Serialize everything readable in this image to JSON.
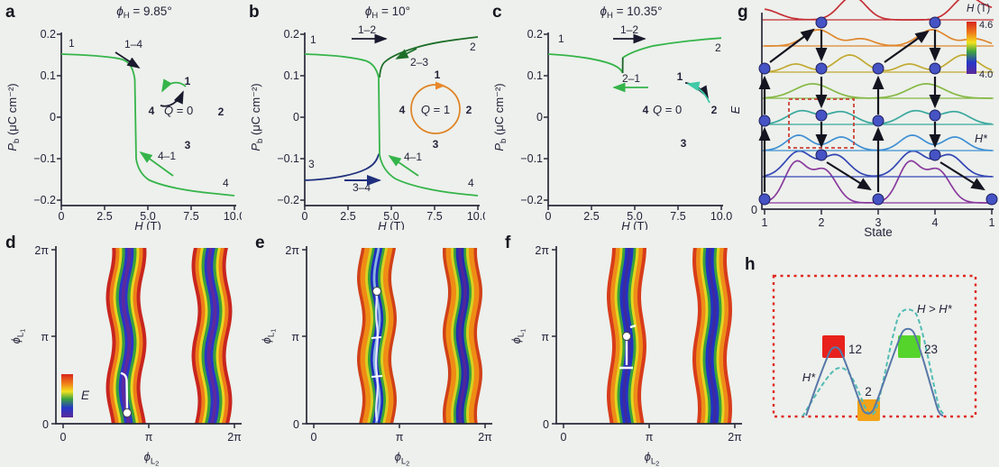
{
  "panels": {
    "a": {
      "letter": "a",
      "title_phi": "ϕ",
      "title_sub": "H",
      "title_rest": " = 9.85°",
      "ylabel_main": "P",
      "ylabel_sub": "b",
      "ylabel_units": " (μC cm⁻²)",
      "xlabel_main": "H",
      "xlabel_units": " (T)",
      "yticks": [
        "0.2",
        "0.1",
        "0",
        "−0.1",
        "−0.2"
      ],
      "xticks": [
        "0",
        "2.5",
        "5.0",
        "7.5",
        "10.0"
      ],
      "pt1": "1",
      "pt4": "4",
      "t14": "1–4",
      "t41": "4–1",
      "cyc_q": "Q",
      "cyc_q_rest": " = 0",
      "cyc_1": "1",
      "cyc_2": "2",
      "cyc_3": "3",
      "cyc_4": "4"
    },
    "b": {
      "letter": "b",
      "title_phi": "ϕ",
      "title_sub": "H",
      "title_rest": " = 10°",
      "ylabel_main": "P",
      "ylabel_sub": "b",
      "ylabel_units": " (μC cm⁻²)",
      "xlabel_main": "H",
      "xlabel_units": " (T)",
      "yticks": [
        "0.2",
        "0.1",
        "0",
        "−0.1",
        "−0.2"
      ],
      "xticks": [
        "0",
        "2.5",
        "5.0",
        "7.5",
        "10.0"
      ],
      "pt1": "1",
      "pt2": "2",
      "pt3": "3",
      "pt4": "4",
      "t12": "1–2",
      "t23": "2–3",
      "t41": "4–1",
      "t34": "3–4",
      "cyc_q": "Q",
      "cyc_q_rest": " = 1",
      "cyc_1": "1",
      "cyc_2": "2",
      "cyc_3": "3",
      "cyc_4": "4"
    },
    "c": {
      "letter": "c",
      "title_phi": "ϕ",
      "title_sub": "H",
      "title_rest": " = 10.35°",
      "ylabel_main": "P",
      "ylabel_sub": "b",
      "ylabel_units": " (μC cm⁻²)",
      "xlabel_main": "H",
      "xlabel_units": " (T)",
      "yticks": [
        "0.2",
        "0.1",
        "0",
        "−0.1",
        "−0.2"
      ],
      "xticks": [
        "0",
        "2.5",
        "5.0",
        "7.5",
        "10.0"
      ],
      "pt1": "1",
      "pt2": "2",
      "t12": "1–2",
      "t21": "2–1",
      "cyc_q": "Q",
      "cyc_q_rest": " = 0",
      "cyc_1": "1",
      "cyc_2": "2",
      "cyc_3": "3",
      "cyc_4": "4"
    },
    "d": {
      "letter": "d",
      "ylabel_phi": "ϕ",
      "ylabel_sub": "L",
      "ylabel_subsub": "1",
      "xlabel_phi": "ϕ",
      "xlabel_sub": "L",
      "xlabel_subsub": "2",
      "yticks": [
        "2π",
        "π",
        "0"
      ],
      "xticks": [
        "0",
        "π",
        "2π"
      ],
      "cbar_label": "E"
    },
    "e": {
      "letter": "e",
      "ylabel_phi": "ϕ",
      "ylabel_sub": "L",
      "ylabel_subsub": "1",
      "xlabel_phi": "ϕ",
      "xlabel_sub": "L",
      "xlabel_subsub": "2",
      "yticks": [
        "2π",
        "π",
        "0"
      ],
      "xticks": [
        "0",
        "π",
        "2π"
      ]
    },
    "f": {
      "letter": "f",
      "ylabel_phi": "ϕ",
      "ylabel_sub": "L",
      "ylabel_subsub": "1",
      "xlabel_phi": "ϕ",
      "xlabel_sub": "L",
      "xlabel_subsub": "2",
      "yticks": [
        "2π",
        "π",
        "0"
      ],
      "xticks": [
        "0",
        "π",
        "2π"
      ]
    },
    "g": {
      "letter": "g",
      "ylabel": "E",
      "ytick0": "0",
      "xticks": [
        "1",
        "2",
        "3",
        "4",
        "1"
      ],
      "xlabel": "State",
      "cbar_h": "H",
      "cbar_units": " (T)",
      "cbar_max": "4.6",
      "cbar_min": "4.0",
      "hstar": "H*"
    },
    "h": {
      "letter": "h",
      "hstar": "H*",
      "cond": "H > H*",
      "lab12": "12",
      "lab2": "2",
      "lab23": "23"
    }
  },
  "colors": {
    "green_curve": "#35b44a",
    "dark_green": "#1d6e28",
    "navy": "#20307e",
    "orange_circle": "#e08222",
    "teal_arrow": "#3ec9a7",
    "dot_blue": "#4553c4",
    "box_red": "#cc4038",
    "h_red": "#e8211c",
    "h_orange": "#f2a318",
    "h_green": "#55d42c",
    "h_solid": "#5878a8",
    "h_dashed": "#52bcb4"
  },
  "chart_data": [
    {
      "id": "a",
      "type": "line",
      "title": "ϕH = 9.85°",
      "xlabel": "H (T)",
      "ylabel": "Pb (μC cm⁻²)",
      "xlim": [
        0,
        10
      ],
      "ylim": [
        -0.2,
        0.2
      ],
      "xticks": [
        0,
        2.5,
        5.0,
        7.5,
        10.0
      ],
      "yticks": [
        -0.2,
        -0.1,
        0,
        0.1,
        0.2
      ],
      "series": [
        {
          "name": "1→4 / 4→1 hysteresis loop (green)",
          "x": [
            0,
            1,
            2,
            3,
            3.7,
            4.1,
            4.3,
            4.35,
            4.35,
            4.5,
            5,
            6,
            8,
            10
          ],
          "y": [
            0.152,
            0.151,
            0.149,
            0.145,
            0.137,
            0.118,
            0.09,
            0.08,
            -0.1,
            -0.128,
            -0.152,
            -0.166,
            -0.179,
            -0.19
          ]
        }
      ],
      "annotations": [
        "1 at (0,0.15)",
        "4 at (10,-0.19)",
        "1–4 transition at H≈4.3 T",
        "4–1 reverse transition",
        "cycle diagram: states 1,2,3,4 with Q = 0"
      ]
    },
    {
      "id": "b",
      "type": "line",
      "title": "ϕH = 10°",
      "xlabel": "H (T)",
      "ylabel": "Pb (μC cm⁻²)",
      "xlim": [
        0,
        10
      ],
      "ylim": [
        -0.2,
        0.2
      ],
      "xticks": [
        0,
        2.5,
        5.0,
        7.5,
        10.0
      ],
      "yticks": [
        -0.2,
        -0.1,
        0,
        0.1,
        0.2
      ],
      "series": [
        {
          "name": "1→4 branch (light green)",
          "x": [
            0,
            1,
            2,
            3,
            3.7,
            4.1,
            4.3,
            4.35,
            4.35,
            4.6,
            5,
            6,
            8,
            10
          ],
          "y": [
            0.152,
            0.151,
            0.149,
            0.145,
            0.138,
            0.12,
            0.1,
            0.095,
            -0.095,
            -0.13,
            -0.152,
            -0.168,
            -0.18,
            -0.19
          ]
        },
        {
          "name": "state-2 branch (dark green)",
          "x": [
            10,
            8,
            6,
            5,
            4.6,
            4.45,
            4.35
          ],
          "y": [
            0.198,
            0.19,
            0.18,
            0.168,
            0.152,
            0.13,
            0.1
          ]
        },
        {
          "name": "state-3 branch (navy)",
          "x": [
            0,
            1,
            2,
            3,
            3.7,
            4.1,
            4.3
          ],
          "y": [
            -0.152,
            -0.151,
            -0.148,
            -0.141,
            -0.13,
            -0.108,
            -0.09
          ]
        }
      ],
      "annotations": [
        "1–2",
        "2–3",
        "4–1",
        "3–4",
        "winding cycle 1→2→3→4 with Q = 1 (orange circle)"
      ]
    },
    {
      "id": "c",
      "type": "line",
      "title": "ϕH = 10.35°",
      "xlabel": "H (T)",
      "ylabel": "Pb (μC cm⁻²)",
      "xlim": [
        0,
        10
      ],
      "ylim": [
        -0.2,
        0.2
      ],
      "xticks": [
        0,
        2.5,
        5.0,
        7.5,
        10.0
      ],
      "yticks": [
        -0.2,
        -0.1,
        0,
        0.1,
        0.2
      ],
      "series": [
        {
          "name": "1↔2 reversible curve (green)",
          "x": [
            0,
            1,
            2,
            3,
            3.7,
            4.2,
            4.3,
            4.3,
            4.6,
            5,
            6,
            8,
            10
          ],
          "y": [
            0.152,
            0.15,
            0.146,
            0.138,
            0.128,
            0.108,
            0.1,
            0.135,
            0.142,
            0.15,
            0.163,
            0.18,
            0.19
          ]
        }
      ],
      "annotations": [
        "1 at (0,0.15)",
        "2 at (10,0.19)",
        "1–2 forward",
        "2–1 reverse",
        "cycle diagram: 1,2 (3,4 unused), Q = 0"
      ]
    },
    {
      "id": "d",
      "type": "heatmap",
      "xlabel": "ϕL2",
      "ylabel": "ϕL1",
      "xlim": [
        "0",
        "2π"
      ],
      "ylim": [
        "0",
        "2π"
      ],
      "colorbar": "E (rainbow, red=high → purple=low)",
      "description": "Energy landscape with two vertical low-energy valleys centered near ϕL2 ≈ 0.75π and 1.75π; white relaxation path ends at dot near (0.75π, 0.1·2π)."
    },
    {
      "id": "e",
      "type": "heatmap",
      "xlabel": "ϕL2",
      "ylabel": "ϕL1",
      "xlim": [
        "0",
        "2π"
      ],
      "ylim": [
        "0",
        "2π"
      ],
      "description": "Same two valleys, narrower/deeper; white winding trajectory runs the full height of the left valley ending at dot near (0.75π, 1.5π)."
    },
    {
      "id": "f",
      "type": "heatmap",
      "xlabel": "ϕL2",
      "ylabel": "ϕL1",
      "xlim": [
        "0",
        "2π"
      ],
      "ylim": [
        "0",
        "2π"
      ],
      "description": "Same two valleys; short white trajectory in left valley ending at dot near (0.75π, π)."
    },
    {
      "id": "g",
      "type": "diagram",
      "xlabel": "State",
      "xticks": [
        1,
        2,
        3,
        4,
        1
      ],
      "ylabel": "E",
      "colorbar": {
        "label": "H (T)",
        "min": 4.0,
        "max": 4.6
      },
      "description": "Stack of 8 energy landscapes vs state for H from 4.0 T (bottom, purple) to 4.6 T (top, red). Blue dots mark occupied minima; black arrows trace switching 1→2→3→4→1; H* marks the critical-field landscape; dashed red box highlights the state-2 well near H*."
    },
    {
      "id": "h",
      "type": "diagram",
      "description": "Barrier schematic inside dashed red box: solid curve at H* and dashed curve for H > H* over barriers 12 (red square) and 23 (green square) flanking minimum 2 (orange square)."
    }
  ]
}
